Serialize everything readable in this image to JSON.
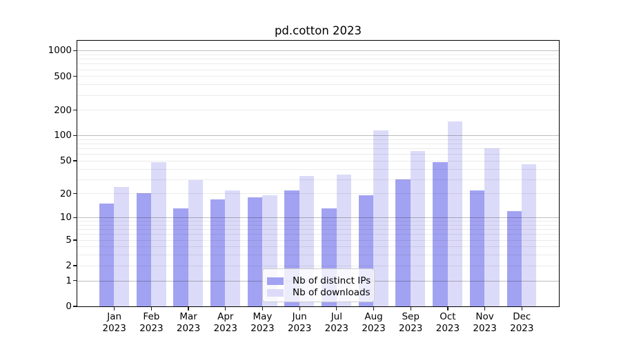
{
  "title": "pd.cotton 2023",
  "chart_data": {
    "type": "bar",
    "title": "pd.cotton 2023",
    "categories": [
      "Jan",
      "Feb",
      "Mar",
      "Apr",
      "May",
      "Jun",
      "Jul",
      "Aug",
      "Sep",
      "Oct",
      "Nov",
      "Dec"
    ],
    "year": "2023",
    "series": [
      {
        "name": "Nb of distinct IPs",
        "color": "#a2a2f2",
        "values": [
          15,
          20,
          13,
          17,
          18,
          22,
          13,
          19,
          30,
          48,
          22,
          12
        ]
      },
      {
        "name": "Nb of downloads",
        "color": "#dbdbf9",
        "values": [
          24,
          48,
          29,
          22,
          19,
          33,
          34,
          115,
          65,
          147,
          70,
          45
        ]
      }
    ],
    "yscale": "log1p",
    "yticks": [
      0,
      1,
      2,
      5,
      10,
      20,
      50,
      100,
      200,
      500,
      1000
    ],
    "ylim": [
      0,
      1300
    ],
    "grid": "major+minor",
    "legend_position": "lower center"
  },
  "colors": {
    "background": "#ffffff",
    "spine": "#000000",
    "text": "#000000",
    "grid_major": "rgba(0,0,0,0.26)",
    "grid_minor": "rgba(0,0,0,0.08)"
  }
}
